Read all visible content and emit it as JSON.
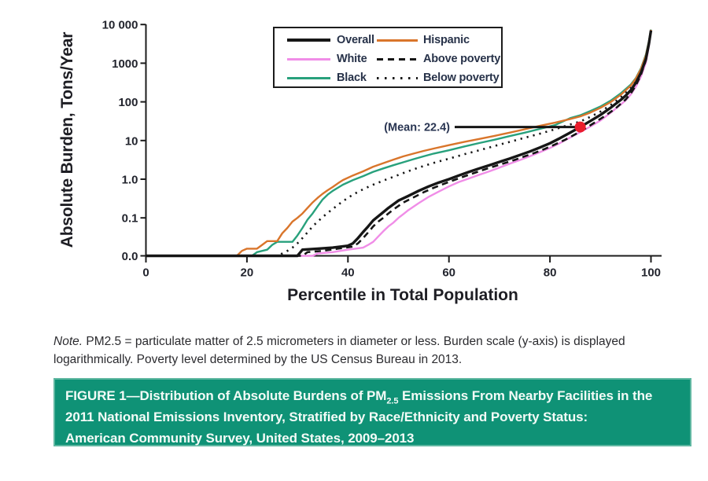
{
  "figure": {
    "note": {
      "label": "Note.",
      "line1_rest": " PM2.5 = particulate matter of 2.5 micrometers in diameter or less. Burden scale (y-axis) is displayed",
      "line2": "logarithmically. Poverty level determined by the US Census Bureau in 2013."
    },
    "caption": {
      "line1_pre": "FIGURE 1—Distribution of Absolute Burdens of PM",
      "line1_sub": "2.5",
      "line1_post": " Emissions From Nearby Facilities in the",
      "line2": "2011 National Emissions Inventory, Stratified by Race/Ethnicity and Poverty Status:",
      "line3": "American Community Survey, United States, 2009–2013",
      "bg_color": "#0f9276",
      "text_color": "#f3fbf7"
    }
  },
  "chart_data": {
    "type": "line",
    "title": "",
    "xlabel": "Percentile in Total Population",
    "ylabel": "Absolute Burden, Tons/Year",
    "x_ticks": [
      0,
      20,
      40,
      60,
      80,
      100
    ],
    "y_tick_labels": [
      "10 000",
      "1000",
      "100",
      "10",
      "1.0",
      "0.1",
      "0.0"
    ],
    "y_tick_values": [
      10000,
      1000,
      100,
      10,
      1,
      0.1,
      0
    ],
    "xlim": [
      0,
      100
    ],
    "ylim_log": [
      0.01,
      10000
    ],
    "y_scale": "log with zero floor at baseline",
    "grid": false,
    "legend": {
      "position": "top-center-inside",
      "columns": [
        [
          "Overall",
          "White",
          "Black"
        ],
        [
          "Hispanic",
          "Above poverty",
          "Below poverty"
        ]
      ]
    },
    "annotation": {
      "label": "(Mean: 22.4)",
      "x": 86,
      "y": 22.4,
      "dot_color": "#ea1c2c",
      "text_color": "#293552"
    },
    "draw_order": [
      "White",
      "Below poverty",
      "Black",
      "Hispanic",
      "Overall",
      "Above poverty"
    ],
    "series": [
      {
        "name": "Overall",
        "color": "#161616",
        "style": "solid",
        "width": 3.4,
        "points": [
          [
            0,
            0
          ],
          [
            30,
            0
          ],
          [
            31,
            0.015
          ],
          [
            34,
            0.016
          ],
          [
            37,
            0.017
          ],
          [
            40,
            0.019
          ],
          [
            41,
            0.022
          ],
          [
            42,
            0.03
          ],
          [
            43,
            0.043
          ],
          [
            44,
            0.06
          ],
          [
            45,
            0.086
          ],
          [
            46,
            0.11
          ],
          [
            47,
            0.14
          ],
          [
            48,
            0.18
          ],
          [
            50,
            0.28
          ],
          [
            52,
            0.37
          ],
          [
            54,
            0.5
          ],
          [
            56,
            0.65
          ],
          [
            58,
            0.82
          ],
          [
            60,
            1.0
          ],
          [
            62,
            1.25
          ],
          [
            64,
            1.55
          ],
          [
            66,
            1.9
          ],
          [
            68,
            2.3
          ],
          [
            70,
            2.8
          ],
          [
            72,
            3.4
          ],
          [
            74,
            4.2
          ],
          [
            76,
            5.2
          ],
          [
            78,
            6.6
          ],
          [
            80,
            8.5
          ],
          [
            82,
            11.5
          ],
          [
            84,
            16
          ],
          [
            86,
            22.4
          ],
          [
            88,
            32
          ],
          [
            90,
            46
          ],
          [
            92,
            70
          ],
          [
            94,
            112
          ],
          [
            95,
            145
          ],
          [
            96,
            200
          ],
          [
            97,
            310
          ],
          [
            98,
            560
          ],
          [
            99,
            1300
          ],
          [
            99.6,
            3200
          ],
          [
            100,
            7000
          ]
        ]
      },
      {
        "name": "White",
        "color": "#f08de7",
        "style": "solid",
        "width": 2.4,
        "points": [
          [
            0,
            0
          ],
          [
            33,
            0
          ],
          [
            34,
            0.012
          ],
          [
            37,
            0.013
          ],
          [
            40,
            0.015
          ],
          [
            43,
            0.017
          ],
          [
            44,
            0.02
          ],
          [
            45,
            0.024
          ],
          [
            46,
            0.033
          ],
          [
            47,
            0.045
          ],
          [
            48,
            0.06
          ],
          [
            49,
            0.075
          ],
          [
            50,
            0.1
          ],
          [
            51,
            0.126
          ],
          [
            52,
            0.16
          ],
          [
            54,
            0.24
          ],
          [
            56,
            0.35
          ],
          [
            58,
            0.48
          ],
          [
            60,
            0.65
          ],
          [
            62,
            0.85
          ],
          [
            64,
            1.05
          ],
          [
            66,
            1.3
          ],
          [
            68,
            1.6
          ],
          [
            70,
            2.0
          ],
          [
            72,
            2.5
          ],
          [
            74,
            3.1
          ],
          [
            76,
            3.9
          ],
          [
            78,
            5.0
          ],
          [
            80,
            6.4
          ],
          [
            82,
            8.6
          ],
          [
            84,
            12
          ],
          [
            86,
            16.5
          ],
          [
            88,
            23
          ],
          [
            90,
            33
          ],
          [
            92,
            52
          ],
          [
            94,
            85
          ],
          [
            95,
            110
          ],
          [
            96,
            155
          ],
          [
            97,
            245
          ],
          [
            98,
            450
          ],
          [
            99,
            1050
          ],
          [
            99.6,
            2800
          ],
          [
            100,
            6800
          ]
        ]
      },
      {
        "name": "Black",
        "color": "#28a17c",
        "style": "solid",
        "width": 2.4,
        "points": [
          [
            0,
            0
          ],
          [
            21,
            0
          ],
          [
            22,
            0.013
          ],
          [
            24,
            0.015
          ],
          [
            25,
            0.02
          ],
          [
            26,
            0.024
          ],
          [
            29,
            0.024
          ],
          [
            30,
            0.035
          ],
          [
            31,
            0.055
          ],
          [
            32,
            0.09
          ],
          [
            33,
            0.13
          ],
          [
            34,
            0.2
          ],
          [
            35,
            0.3
          ],
          [
            36,
            0.4
          ],
          [
            37,
            0.5
          ],
          [
            38,
            0.6
          ],
          [
            39,
            0.72
          ],
          [
            41,
            0.95
          ],
          [
            43,
            1.2
          ],
          [
            45,
            1.55
          ],
          [
            47,
            1.9
          ],
          [
            49,
            2.3
          ],
          [
            51,
            2.75
          ],
          [
            53,
            3.3
          ],
          [
            55,
            3.9
          ],
          [
            57,
            4.6
          ],
          [
            60,
            5.6
          ],
          [
            63,
            7.0
          ],
          [
            66,
            8.6
          ],
          [
            69,
            10.5
          ],
          [
            72,
            13
          ],
          [
            75,
            16
          ],
          [
            78,
            20
          ],
          [
            81,
            25
          ],
          [
            84,
            38
          ],
          [
            86,
            45
          ],
          [
            88,
            58
          ],
          [
            90,
            76
          ],
          [
            92,
            107
          ],
          [
            94,
            165
          ],
          [
            96,
            280
          ],
          [
            97,
            410
          ],
          [
            98,
            730
          ],
          [
            99,
            1680
          ],
          [
            99.6,
            3750
          ],
          [
            100,
            7400
          ]
        ]
      },
      {
        "name": "Hispanic",
        "color": "#d9752b",
        "style": "solid",
        "width": 2.4,
        "points": [
          [
            0,
            0
          ],
          [
            18,
            0
          ],
          [
            19,
            0.014
          ],
          [
            20,
            0.016
          ],
          [
            22,
            0.016
          ],
          [
            23,
            0.02
          ],
          [
            24,
            0.025
          ],
          [
            26,
            0.025
          ],
          [
            27,
            0.04
          ],
          [
            28,
            0.055
          ],
          [
            29,
            0.08
          ],
          [
            30,
            0.1
          ],
          [
            31,
            0.13
          ],
          [
            32,
            0.18
          ],
          [
            33,
            0.25
          ],
          [
            34,
            0.33
          ],
          [
            35,
            0.42
          ],
          [
            36,
            0.52
          ],
          [
            37,
            0.63
          ],
          [
            38,
            0.78
          ],
          [
            39,
            0.95
          ],
          [
            41,
            1.25
          ],
          [
            43,
            1.6
          ],
          [
            45,
            2.1
          ],
          [
            47,
            2.6
          ],
          [
            49,
            3.2
          ],
          [
            51,
            3.9
          ],
          [
            53,
            4.6
          ],
          [
            55,
            5.4
          ],
          [
            57,
            6.2
          ],
          [
            60,
            7.6
          ],
          [
            63,
            9.2
          ],
          [
            66,
            11
          ],
          [
            69,
            13.2
          ],
          [
            72,
            16
          ],
          [
            75,
            19.5
          ],
          [
            78,
            24
          ],
          [
            81,
            29
          ],
          [
            84,
            36
          ],
          [
            86,
            42
          ],
          [
            88,
            53
          ],
          [
            90,
            70
          ],
          [
            92,
            98
          ],
          [
            94,
            152
          ],
          [
            96,
            262
          ],
          [
            97,
            395
          ],
          [
            98,
            705
          ],
          [
            99,
            1600
          ],
          [
            99.6,
            3600
          ],
          [
            100,
            7300
          ]
        ]
      },
      {
        "name": "Above poverty",
        "color": "#161616",
        "style": "dashed",
        "width": 2.6,
        "points": [
          [
            0,
            0
          ],
          [
            31,
            0
          ],
          [
            32,
            0.013
          ],
          [
            35,
            0.014
          ],
          [
            38,
            0.016
          ],
          [
            41,
            0.018
          ],
          [
            42,
            0.022
          ],
          [
            43,
            0.03
          ],
          [
            44,
            0.042
          ],
          [
            45,
            0.06
          ],
          [
            46,
            0.08
          ],
          [
            47,
            0.1
          ],
          [
            48,
            0.13
          ],
          [
            49,
            0.165
          ],
          [
            51,
            0.25
          ],
          [
            53,
            0.34
          ],
          [
            55,
            0.46
          ],
          [
            57,
            0.6
          ],
          [
            59,
            0.76
          ],
          [
            61,
            0.95
          ],
          [
            63,
            1.18
          ],
          [
            65,
            1.45
          ],
          [
            67,
            1.78
          ],
          [
            69,
            2.15
          ],
          [
            71,
            2.6
          ],
          [
            73,
            3.15
          ],
          [
            75,
            3.9
          ],
          [
            77,
            4.8
          ],
          [
            79,
            6.1
          ],
          [
            81,
            7.9
          ],
          [
            83,
            10.5
          ],
          [
            85,
            14.5
          ],
          [
            87,
            20.5
          ],
          [
            89,
            30
          ],
          [
            91,
            44
          ],
          [
            93,
            68
          ],
          [
            95,
            115
          ],
          [
            96,
            165
          ],
          [
            97,
            265
          ],
          [
            98,
            500
          ],
          [
            99,
            1200
          ],
          [
            99.6,
            3100
          ],
          [
            100,
            7000
          ]
        ]
      },
      {
        "name": "Below poverty",
        "color": "#161616",
        "style": "dotted",
        "width": 2.6,
        "points": [
          [
            0,
            0
          ],
          [
            26,
            0
          ],
          [
            27,
            0.012
          ],
          [
            28,
            0.014
          ],
          [
            29,
            0.017
          ],
          [
            30,
            0.022
          ],
          [
            31,
            0.03
          ],
          [
            32,
            0.042
          ],
          [
            33,
            0.06
          ],
          [
            34,
            0.08
          ],
          [
            35,
            0.105
          ],
          [
            36,
            0.135
          ],
          [
            37,
            0.17
          ],
          [
            38,
            0.215
          ],
          [
            39,
            0.27
          ],
          [
            41,
            0.4
          ],
          [
            43,
            0.55
          ],
          [
            45,
            0.72
          ],
          [
            47,
            0.92
          ],
          [
            49,
            1.15
          ],
          [
            51,
            1.45
          ],
          [
            53,
            1.8
          ],
          [
            55,
            2.2
          ],
          [
            57,
            2.65
          ],
          [
            60,
            3.4
          ],
          [
            63,
            4.4
          ],
          [
            66,
            5.6
          ],
          [
            69,
            7.2
          ],
          [
            72,
            9.2
          ],
          [
            75,
            11.8
          ],
          [
            78,
            15
          ],
          [
            81,
            19.5
          ],
          [
            84,
            26
          ],
          [
            86,
            31
          ],
          [
            88,
            41
          ],
          [
            90,
            56
          ],
          [
            92,
            82
          ],
          [
            94,
            130
          ],
          [
            96,
            230
          ],
          [
            97,
            350
          ],
          [
            98,
            640
          ],
          [
            99,
            1450
          ],
          [
            99.6,
            3400
          ],
          [
            100,
            7200
          ]
        ]
      }
    ]
  }
}
